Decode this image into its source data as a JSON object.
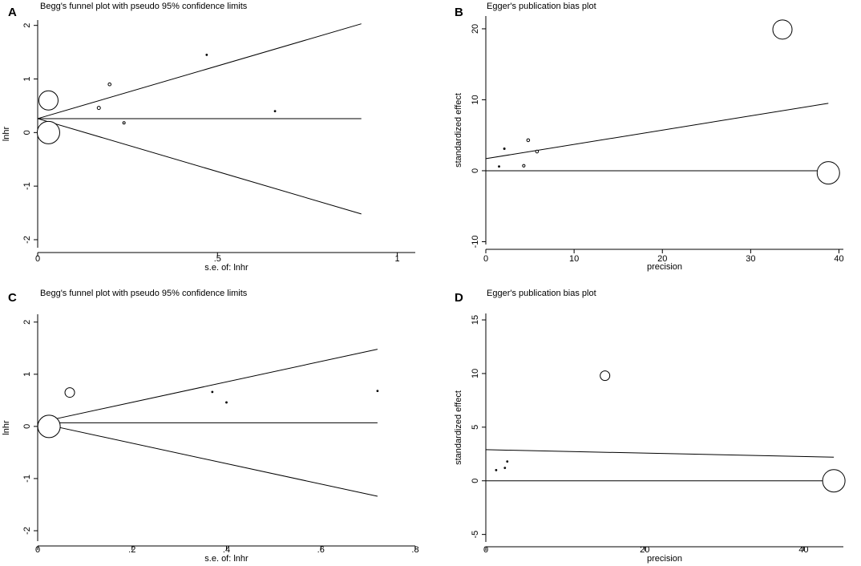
{
  "chart_data": [
    {
      "id": "A",
      "panel_label": "A",
      "type": "scatter",
      "title": "Begg's funnel plot with pseudo 95% confidence limits",
      "xlabel": "s.e. of: lnhr",
      "ylabel": "lnhr",
      "xlim": [
        0,
        1.05
      ],
      "ylim": [
        -2.15,
        2.1
      ],
      "xticks": [
        0,
        0.5,
        1
      ],
      "xtick_labels": [
        "0",
        ".5",
        "1"
      ],
      "yticks": [
        -2,
        -1,
        0,
        1,
        2
      ],
      "ytick_labels": [
        "-2",
        "-1",
        "0",
        "1",
        "2"
      ],
      "points": [
        {
          "x": 0.03,
          "y": 0.6,
          "size": 12
        },
        {
          "x": 0.03,
          "y": 0.0,
          "size": 14
        },
        {
          "x": 0.17,
          "y": 0.46,
          "size": 2
        },
        {
          "x": 0.2,
          "y": 0.9,
          "size": 1.8
        },
        {
          "x": 0.24,
          "y": 0.18,
          "size": 1.5
        },
        {
          "x": 0.47,
          "y": 1.45,
          "size": 0.8
        },
        {
          "x": 0.66,
          "y": 0.4,
          "size": 0.8
        }
      ],
      "lines": [
        {
          "name": "pooled estimate",
          "x": [
            0,
            0.9
          ],
          "y": [
            0.26,
            0.26
          ]
        },
        {
          "name": "upper 95% limit",
          "x": [
            0,
            0.9
          ],
          "y": [
            0.26,
            2.03
          ]
        },
        {
          "name": "lower 95% limit",
          "x": [
            0,
            0.9
          ],
          "y": [
            0.26,
            -1.52
          ]
        }
      ]
    },
    {
      "id": "B",
      "panel_label": "B",
      "type": "scatter",
      "title": "Egger's publication bias plot",
      "xlabel": "precision",
      "ylabel": "standardized effect",
      "xlim": [
        0,
        40.5
      ],
      "ylim": [
        -10.4,
        21.8
      ],
      "xticks": [
        0,
        10,
        20,
        30,
        40
      ],
      "xtick_labels": [
        "0",
        "10",
        "20",
        "30",
        "40"
      ],
      "yticks": [
        -10,
        0,
        10,
        20
      ],
      "yticks_labels_note": "",
      "ytick_labels": [
        "-10",
        "0",
        "10",
        "20"
      ],
      "points": [
        {
          "x": 33.6,
          "y": 19.9,
          "size": 12
        },
        {
          "x": 38.8,
          "y": -0.3,
          "size": 14
        },
        {
          "x": 1.5,
          "y": 0.6,
          "size": 0.8
        },
        {
          "x": 2.1,
          "y": 3.1,
          "size": 0.9
        },
        {
          "x": 4.3,
          "y": 0.7,
          "size": 1.6
        },
        {
          "x": 4.8,
          "y": 4.3,
          "size": 1.8
        },
        {
          "x": 5.8,
          "y": 2.7,
          "size": 1.8
        }
      ],
      "lines": [
        {
          "name": "regression line",
          "x": [
            0,
            38.8
          ],
          "y": [
            1.7,
            9.5
          ]
        },
        {
          "name": "zero line",
          "x": [
            0,
            40
          ],
          "y": [
            0,
            0
          ]
        }
      ],
      "vertical_line_x": 0
    },
    {
      "id": "C",
      "panel_label": "C",
      "type": "scatter",
      "title": "Begg's funnel plot with pseudo 95% confidence limits",
      "xlabel": "s.e. of: lnhr",
      "ylabel": "lnhr",
      "xlim": [
        0,
        0.8
      ],
      "ylim": [
        -2.2,
        2.15
      ],
      "xticks": [
        0,
        0.2,
        0.4,
        0.6,
        0.8
      ],
      "xtick_labels": [
        "0",
        ".2",
        ".4",
        ".6",
        ".8"
      ],
      "yticks": [
        -2,
        -1,
        0,
        1,
        2
      ],
      "ytick_labels": [
        "-2",
        "-1",
        "0",
        "1",
        "2"
      ],
      "points": [
        {
          "x": 0.024,
          "y": 0.0,
          "size": 14
        },
        {
          "x": 0.068,
          "y": 0.65,
          "size": 6
        },
        {
          "x": 0.37,
          "y": 0.66,
          "size": 0.8
        },
        {
          "x": 0.4,
          "y": 0.46,
          "size": 0.8
        },
        {
          "x": 0.72,
          "y": 0.68,
          "size": 0.8
        }
      ],
      "lines": [
        {
          "name": "pooled estimate",
          "x": [
            0,
            0.72
          ],
          "y": [
            0.07,
            0.07
          ]
        },
        {
          "name": "upper 95% limit",
          "x": [
            0,
            0.72
          ],
          "y": [
            0.07,
            1.48
          ]
        },
        {
          "name": "lower 95% limit",
          "x": [
            0,
            0.72
          ],
          "y": [
            0.07,
            -1.34
          ]
        }
      ]
    },
    {
      "id": "D",
      "panel_label": "D",
      "type": "scatter",
      "title": "Egger's publication bias plot",
      "xlabel": "precision",
      "ylabel": "standardized effect",
      "xlim": [
        0,
        45
      ],
      "ylim": [
        -5.7,
        15.6
      ],
      "xticks": [
        0,
        20,
        40
      ],
      "xtick_labels": [
        "0",
        "20",
        "40"
      ],
      "yticks": [
        -5,
        0,
        5,
        10,
        15
      ],
      "ytick_labels": [
        "-5",
        "0",
        "5",
        "10",
        "15"
      ],
      "points": [
        {
          "x": 15.0,
          "y": 9.8,
          "size": 6
        },
        {
          "x": 43.8,
          "y": 0.0,
          "size": 14
        },
        {
          "x": 1.3,
          "y": 1.0,
          "size": 0.8
        },
        {
          "x": 2.4,
          "y": 1.2,
          "size": 0.8
        },
        {
          "x": 2.7,
          "y": 1.8,
          "size": 0.8
        }
      ],
      "lines": [
        {
          "name": "regression line",
          "x": [
            0,
            43.8
          ],
          "y": [
            2.9,
            2.2
          ]
        },
        {
          "name": "zero line",
          "x": [
            0,
            43.8
          ],
          "y": [
            0,
            0
          ]
        }
      ],
      "vertical_line_x": 0
    }
  ]
}
